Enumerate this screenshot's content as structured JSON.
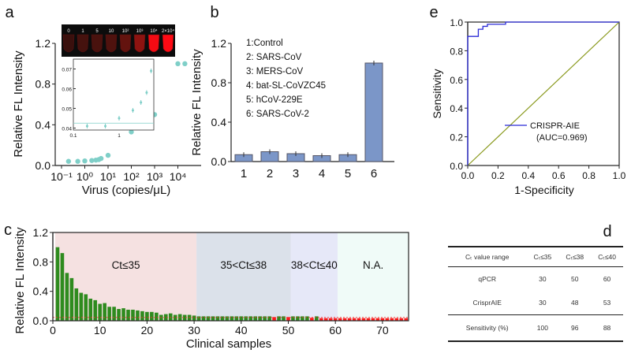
{
  "panel_labels": {
    "a": "a",
    "b": "b",
    "c": "c",
    "d": "d",
    "e": "e"
  },
  "chart_data": [
    {
      "id": "a",
      "type": "scatter",
      "xlabel": "Virus (copies/μL)",
      "ylabel": "Relative FL Intensity",
      "xscale": "log",
      "xticks": [
        "10⁻¹",
        "10⁰",
        "10¹",
        "10²",
        "10³",
        "10⁴"
      ],
      "yticks": [
        "0.0",
        "0.4",
        "0.8",
        "1.2"
      ],
      "ylim": [
        0,
        1.2
      ],
      "x": [
        0.2,
        0.5,
        1,
        2,
        3,
        4,
        5,
        10,
        100,
        1000,
        10000,
        20000
      ],
      "y": [
        0.041,
        0.041,
        0.045,
        0.049,
        0.053,
        0.058,
        0.069,
        0.1,
        0.33,
        0.5,
        1.0,
        1.0
      ],
      "color": "#7fcfc8",
      "inset": {
        "xticks": [
          "0.1",
          "1"
        ],
        "yticks": [
          "0.04",
          "0.05",
          "0.06",
          "0.07"
        ],
        "ylim": [
          0.039,
          0.075
        ],
        "threshold": 0.0425
      },
      "image_labels": [
        "0",
        "1",
        "5",
        "10",
        "10²",
        "10³",
        "10⁴",
        "2×10⁴"
      ],
      "image_intensity": [
        0.05,
        0.1,
        0.12,
        0.15,
        0.25,
        0.45,
        0.95,
        1.0
      ]
    },
    {
      "id": "b",
      "type": "bar",
      "ylabel": "Relative FL Intensity",
      "categories": [
        "1",
        "2",
        "3",
        "4",
        "5",
        "6"
      ],
      "values": [
        0.07,
        0.1,
        0.08,
        0.06,
        0.07,
        1.0
      ],
      "ylim": [
        0,
        1.2
      ],
      "yticks": [
        "0.0",
        "0.4",
        "0.8",
        "1.2"
      ],
      "color": "#7b96c8",
      "legend": [
        "1:Control",
        "2: SARS-CoV",
        "3: MERS-CoV",
        "4: bat-SL-CoVZC45",
        "5: hCoV-229E",
        "6: SARS-CoV-2"
      ]
    },
    {
      "id": "c",
      "type": "bar",
      "xlabel": "Clinical samples",
      "ylabel": "Relative FL Intensity",
      "ylim": [
        0,
        1.2
      ],
      "xlim": [
        0,
        76
      ],
      "yticks": [
        "0.0",
        "0.4",
        "0.8",
        "1.2"
      ],
      "xticks": [
        "0",
        "10",
        "20",
        "30",
        "40",
        "50",
        "60",
        "70"
      ],
      "threshold": 0.045,
      "regions": [
        {
          "label": "Ct≤35",
          "from": 0.5,
          "to": 30.5,
          "color": "#f5e1e1"
        },
        {
          "label": "35<Ct≤38",
          "from": 30.5,
          "to": 50.5,
          "color": "#dbe1ea"
        },
        {
          "label": "38<Ct≤40",
          "from": 50.5,
          "to": 60.5,
          "color": "#e6e8f8"
        },
        {
          "label": "N.A.",
          "from": 60.5,
          "to": 76,
          "color": "#f0fbf8"
        }
      ],
      "values": [
        1.0,
        0.92,
        0.65,
        0.58,
        0.44,
        0.38,
        0.36,
        0.3,
        0.28,
        0.23,
        0.24,
        0.19,
        0.19,
        0.16,
        0.17,
        0.15,
        0.15,
        0.14,
        0.13,
        0.12,
        0.12,
        0.11,
        0.08,
        0.09,
        0.1,
        0.08,
        0.09,
        0.08,
        0.08,
        0.07,
        0.06,
        0.06,
        0.06,
        0.06,
        0.06,
        0.06,
        0.06,
        0.06,
        0.06,
        0.06,
        0.06,
        0.06,
        0.06,
        0.06,
        0.06,
        0.06,
        0.05,
        0.06,
        0.06,
        0.05,
        0.06,
        0.06,
        0.06,
        0.06,
        0.04,
        0.06,
        0.035,
        0.035,
        0.035,
        0.035,
        0.035,
        0.035,
        0.035,
        0.035,
        0.035,
        0.035,
        0.035,
        0.035,
        0.035,
        0.035,
        0.035,
        0.035,
        0.035,
        0.035,
        0.035
      ],
      "positive": [
        1,
        1,
        1,
        1,
        1,
        1,
        1,
        1,
        1,
        1,
        1,
        1,
        1,
        1,
        1,
        1,
        1,
        1,
        1,
        1,
        1,
        1,
        1,
        1,
        1,
        1,
        1,
        1,
        1,
        1,
        1,
        1,
        1,
        1,
        1,
        1,
        1,
        1,
        1,
        1,
        1,
        1,
        1,
        1,
        1,
        1,
        0,
        1,
        1,
        0,
        1,
        1,
        1,
        1,
        0,
        1,
        0,
        0,
        0,
        0,
        0,
        0,
        0,
        0,
        0,
        0,
        0,
        0,
        0,
        0,
        0,
        0,
        0,
        0,
        0
      ],
      "colors": {
        "positive": "#2e8b1e",
        "negative": "#ff1a1a"
      }
    },
    {
      "id": "e",
      "type": "line",
      "xlabel": "1-Specificity",
      "ylabel": "Sensitivity",
      "xlim": [
        0,
        1
      ],
      "ylim": [
        0,
        1
      ],
      "xticks": [
        "0.0",
        "0.2",
        "0.4",
        "0.6",
        "0.8",
        "1.0"
      ],
      "yticks": [
        "0.0",
        "0.2",
        "0.4",
        "0.6",
        "0.8",
        "1.0"
      ],
      "roc": {
        "x": [
          0,
          0,
          0.07,
          0.07,
          0.1,
          0.1,
          0.13,
          0.13,
          0.25,
          0.25,
          1
        ],
        "y": [
          0,
          0.9,
          0.9,
          0.95,
          0.95,
          0.97,
          0.97,
          0.985,
          0.985,
          1,
          1
        ]
      },
      "legend": [
        "CRISPR-AIE",
        "(AUC=0.969)"
      ],
      "roc_color": "#2b2bd6",
      "diag_color": "#8a9a1e"
    }
  ],
  "table": {
    "header": [
      "Cₜ value range",
      "Cₜ≤35",
      "Cₜ≤38",
      "Cₜ≤40"
    ],
    "rows": [
      [
        "qPCR",
        "30",
        "50",
        "60"
      ],
      [
        "CrisprAIE",
        "30",
        "48",
        "53"
      ],
      [
        "Sensitivity (%)",
        "100",
        "96",
        "88"
      ]
    ]
  }
}
